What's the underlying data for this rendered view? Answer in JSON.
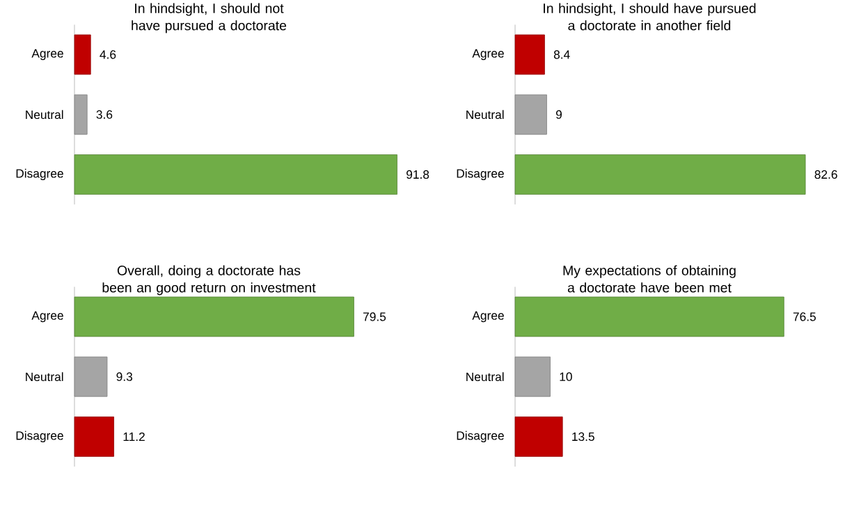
{
  "chart_data": [
    {
      "type": "bar",
      "orientation": "horizontal",
      "title": "In hindsight, I should not have pursued a doctorate",
      "categories": [
        "Agree",
        "Neutral",
        "Disagree"
      ],
      "values": [
        4.6,
        3.6,
        91.8
      ],
      "colors": [
        "#c00000",
        "#a5a5a5",
        "#70ad47"
      ],
      "data_labels": true,
      "tick_labels": "y"
    },
    {
      "type": "bar",
      "orientation": "horizontal",
      "title": "In hindsight, I should have pursued a doctorate in another field",
      "categories": [
        "Agree",
        "Neutral",
        "Disagree"
      ],
      "values": [
        8.4,
        9,
        82.6
      ],
      "colors": [
        "#c00000",
        "#a5a5a5",
        "#70ad47"
      ],
      "data_labels": true,
      "tick_labels": "y"
    },
    {
      "type": "bar",
      "orientation": "horizontal",
      "title": "Overall, doing a doctorate has been an good return on investment",
      "categories": [
        "Agree",
        "Neutral",
        "Disagree"
      ],
      "values": [
        79.5,
        9.3,
        11.2
      ],
      "colors": [
        "#70ad47",
        "#a5a5a5",
        "#c00000"
      ],
      "data_labels": true,
      "tick_labels": "y"
    },
    {
      "type": "bar",
      "orientation": "horizontal",
      "title": "My expectations of obtaining a doctorate have been met",
      "categories": [
        "Agree",
        "Neutral",
        "Disagree"
      ],
      "values": [
        76.5,
        10,
        13.5
      ],
      "colors": [
        "#70ad47",
        "#a5a5a5",
        "#c00000"
      ],
      "data_labels": true,
      "tick_labels": "y"
    }
  ]
}
